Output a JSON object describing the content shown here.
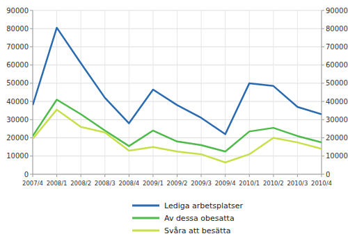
{
  "chart_data": {
    "type": "line",
    "categories": [
      "2007/4",
      "2008/1",
      "2008/2",
      "2008/3",
      "2008/4",
      "2009/1",
      "2009/2",
      "2009/3",
      "2009/4",
      "2010/1",
      "2010/2",
      "2010/3",
      "2010/4"
    ],
    "series": [
      {
        "name": "Lediga arbetsplatser",
        "color": "#2a6bb0",
        "values": [
          38000,
          80500,
          61000,
          42000,
          28000,
          46500,
          38000,
          31000,
          22000,
          50000,
          48500,
          37000,
          33000
        ]
      },
      {
        "name": "Av dessa obesatta",
        "color": "#4dba4a",
        "values": [
          21000,
          41000,
          33000,
          24000,
          15500,
          24000,
          18000,
          16000,
          12500,
          23500,
          25500,
          21000,
          17500
        ]
      },
      {
        "name": "Svåra att besätta",
        "color": "#c6e04a",
        "values": [
          19500,
          35500,
          26000,
          23000,
          13000,
          15000,
          12500,
          11000,
          6500,
          11000,
          20000,
          17500,
          14000
        ]
      }
    ],
    "ylim": [
      0,
      90000
    ],
    "yticks": [
      0,
      10000,
      20000,
      30000,
      40000,
      50000,
      60000,
      70000,
      80000,
      90000
    ],
    "y2lim": [
      0,
      90000
    ],
    "y2ticks": [
      0,
      10000,
      20000,
      30000,
      40000,
      50000,
      60000,
      70000,
      80000,
      90000
    ],
    "grid": true,
    "legend": "bottom"
  }
}
